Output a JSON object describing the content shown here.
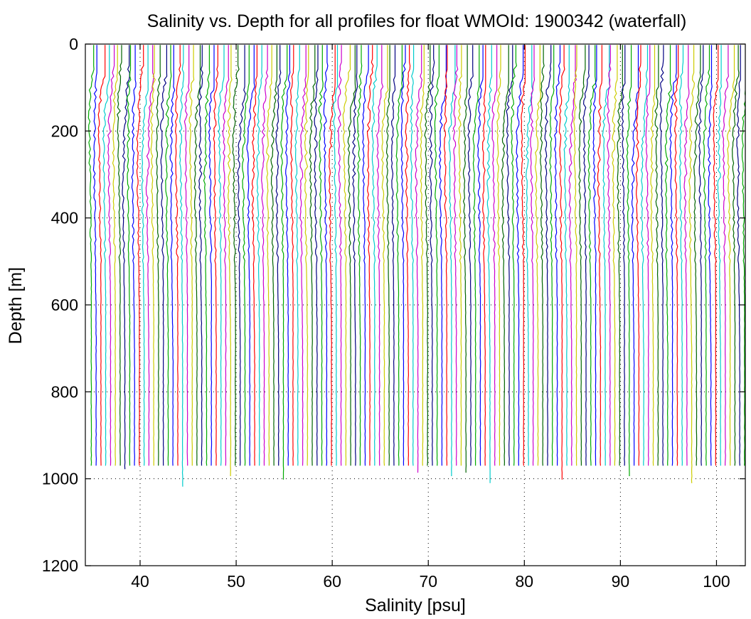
{
  "chart_data": {
    "type": "line",
    "title": "Salinity vs. Depth for all profiles for float WMOId: 1900342 (waterfall)",
    "xlabel": "Salinity [psu]",
    "ylabel": "Depth [m]",
    "xlim": [
      34.3,
      103
    ],
    "ylim": [
      1200,
      0
    ],
    "y_reversed": true,
    "grid": true,
    "x_ticks": [
      40,
      50,
      60,
      70,
      80,
      90,
      100
    ],
    "y_ticks": [
      0,
      200,
      400,
      600,
      800,
      1000,
      1200
    ],
    "colors": [
      "#00aa00",
      "#0000ff",
      "#ff0000",
      "#00cccc",
      "#cc00cc",
      "#cccc00",
      "#006400",
      "#000080"
    ],
    "waterfall_offset_psu": 0.5,
    "profile_count": 137,
    "first_profile_base_salinity": 34.8,
    "profile_depth_max_m": 975
  }
}
